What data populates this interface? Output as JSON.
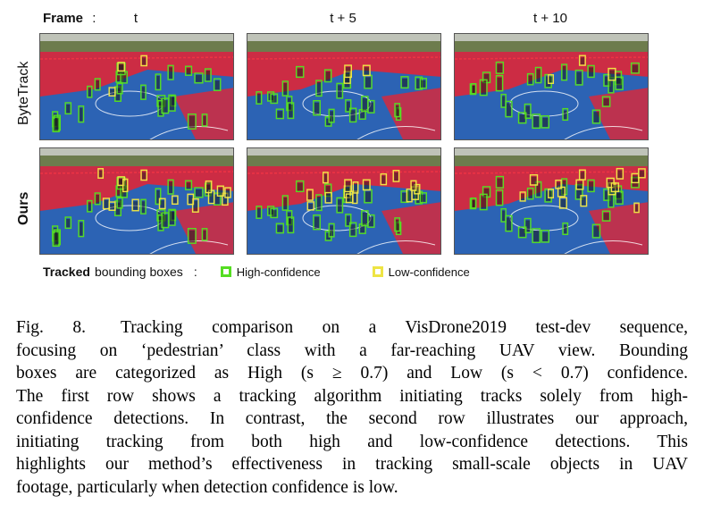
{
  "header": {
    "frame_label": "Frame",
    "separator": ":",
    "columns": [
      "t",
      "t + 5",
      "t + 10"
    ]
  },
  "rows": [
    {
      "label": "ByteTrack"
    },
    {
      "label": "Ours"
    }
  ],
  "legend": {
    "tracked_bold": "Tracked",
    "tracked_rest": "bounding boxes",
    "separator": ":",
    "high": "High-confidence",
    "low": "Low-confidence",
    "high_color": "#55dd22",
    "low_color": "#eee444"
  },
  "caption": {
    "lines": [
      "Fig. 8.  Tracking comparison on a VisDrone2019 test-dev sequence,",
      "focusing on ‘pedestrian’ class with a far-reaching UAV view. Bounding",
      "boxes are categorized as High (s ≥ 0.7) and Low (s < 0.7) confidence.",
      "The first row shows a tracking algorithm initiating tracks solely from high-",
      "confidence detections. In contrast, the second row illustrates our approach,",
      "initiating tracking from both high and low-confidence detections. This",
      "highlights our method’s effectiveness in tracking small-scale objects in UAV",
      "footage, particularly when detection confidence is low."
    ]
  },
  "colors": {
    "court_blue": "#2c63b4",
    "court_red": "#cc2c44",
    "trees": "#6d7c4d",
    "sky": "#bfc3b8"
  }
}
